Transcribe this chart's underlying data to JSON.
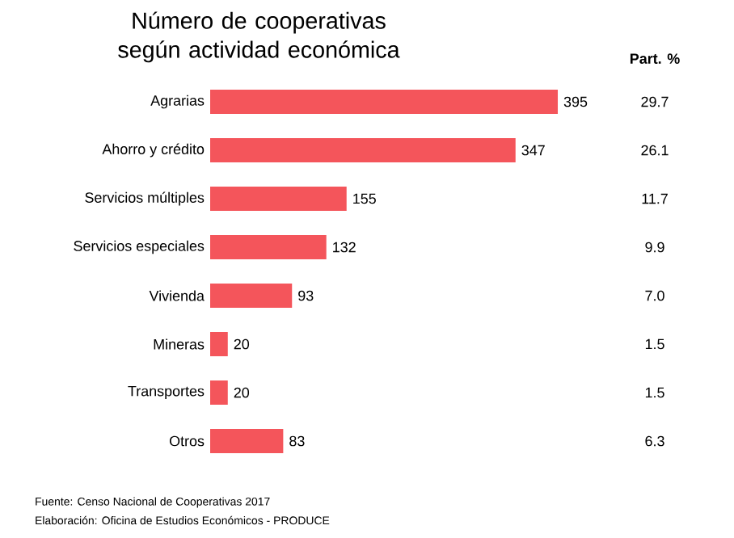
{
  "chart_data": {
    "type": "bar",
    "orientation": "horizontal",
    "title": "Número de cooperativas según actividad económica",
    "categories": [
      "Agrarias",
      "Ahorro y crédito",
      "Servicios múltiples",
      "Servicios especiales",
      "Vivienda",
      "Mineras",
      "Transportes",
      "Otros"
    ],
    "values": [
      395,
      347,
      155,
      132,
      93,
      20,
      20,
      83
    ],
    "color": "#f4555b",
    "tick_labels": "y",
    "data_labels": true,
    "annotations": [
      "Part. %",
      "29.7",
      "26.1",
      "11.7",
      "9.9",
      "7.0",
      "1.5",
      "1.5",
      "6.3",
      "Fuente: Censo Nacional de Cooperativas 2017",
      "Elaboración: Oficina de Estudios Económicos - PRODUCE"
    ]
  }
}
